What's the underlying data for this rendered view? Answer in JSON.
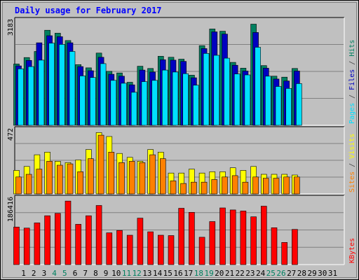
{
  "chart_data": {
    "type": "bar",
    "title": "Daily usage for February 2017",
    "categories": [
      "1",
      "2",
      "3",
      "4",
      "5",
      "6",
      "7",
      "8",
      "9",
      "10",
      "11",
      "12",
      "13",
      "14",
      "15",
      "16",
      "17",
      "18",
      "19",
      "20",
      "21",
      "22",
      "23",
      "24",
      "25",
      "26",
      "27",
      "28",
      "29",
      "30",
      "31"
    ],
    "weekend_days": [
      "4",
      "5",
      "11",
      "12",
      "18",
      "19",
      "25",
      "26"
    ],
    "panels": [
      {
        "id": "hits_files_pages",
        "ymax": 3183,
        "ymax_label": "3183",
        "side_labels": [
          {
            "text": "Pages",
            "color": "#00e0ff"
          },
          {
            "text": " / ",
            "color": "#444444"
          },
          {
            "text": "Files",
            "color": "#0000c0"
          },
          {
            "text": " / ",
            "color": "#444444"
          },
          {
            "text": "Hits",
            "color": "#008060"
          }
        ],
        "series": [
          {
            "name": "Hits",
            "color": "#008060",
            "values": [
              1910,
              2110,
              2300,
              2960,
              2870,
              2640,
              1890,
              1790,
              2250,
              1680,
              1630,
              1340,
              1840,
              1770,
              2150,
              2120,
              2060,
              1560,
              2480,
              3000,
              2930,
              1960,
              1780,
              3150,
              1860,
              1530,
              1500,
              1770,
              null,
              null,
              null
            ]
          },
          {
            "name": "Files",
            "color": "#0000c0",
            "values": [
              1850,
              2020,
              2570,
              2790,
              2760,
              2570,
              1830,
              1700,
              2120,
              1590,
              1530,
              1260,
              1720,
              1660,
              2040,
              2030,
              1990,
              1480,
              2390,
              2910,
              2840,
              1870,
              1690,
              2890,
              1780,
              1440,
              1380,
              1690,
              null,
              null,
              null
            ]
          },
          {
            "name": "Pages",
            "color": "#00e0ff",
            "values": [
              1760,
              1830,
              2030,
              2560,
              2520,
              2300,
              1540,
              1490,
              1920,
              1400,
              1310,
              1030,
              1360,
              1400,
              1720,
              1660,
              1610,
              1250,
              2240,
              2180,
              2090,
              1600,
              1570,
              2430,
              1530,
              1210,
              1150,
              1300,
              null,
              null,
              null
            ]
          }
        ]
      },
      {
        "id": "visits_sites",
        "ymax": 472,
        "ymax_label": "472",
        "side_labels": [
          {
            "text": "Sites",
            "color": "#ff8000"
          },
          {
            "text": " / ",
            "color": "#444444"
          },
          {
            "text": "Visits",
            "color": "#ffff00"
          }
        ],
        "series": [
          {
            "name": "Visits",
            "color": "#ffff00",
            "values": [
              180,
              210,
              300,
              320,
              250,
              240,
              260,
              340,
              470,
              440,
              310,
              280,
              250,
              340,
              320,
              160,
              160,
              190,
              160,
              170,
              170,
              200,
              180,
              210,
              150,
              150,
              150,
              145,
              null,
              null,
              null
            ]
          },
          {
            "name": "Sites",
            "color": "#ff8000",
            "values": [
              130,
              150,
              190,
              250,
              220,
              230,
              170,
              270,
              450,
              320,
              240,
              250,
              240,
              300,
              270,
              100,
              80,
              90,
              90,
              110,
              130,
              140,
              90,
              130,
              120,
              120,
              130,
              130,
              null,
              null,
              null
            ]
          }
        ]
      },
      {
        "id": "kbytes",
        "ymax": 186416,
        "ymax_label": "186416",
        "side_labels": [
          {
            "text": "KBytes",
            "color": "#ff0000"
          }
        ],
        "series": [
          {
            "name": "KBytes",
            "color": "#ff0000",
            "values": [
              110000,
              107000,
              122000,
              143000,
              150000,
              186000,
              118000,
              143000,
              173000,
              93000,
              100000,
              86000,
              136000,
              96000,
              86000,
              85000,
              165000,
              153000,
              80000,
              126000,
              166000,
              160000,
              157000,
              140000,
              171000,
              108000,
              65000,
              103000,
              null,
              null,
              null
            ]
          }
        ]
      }
    ]
  }
}
